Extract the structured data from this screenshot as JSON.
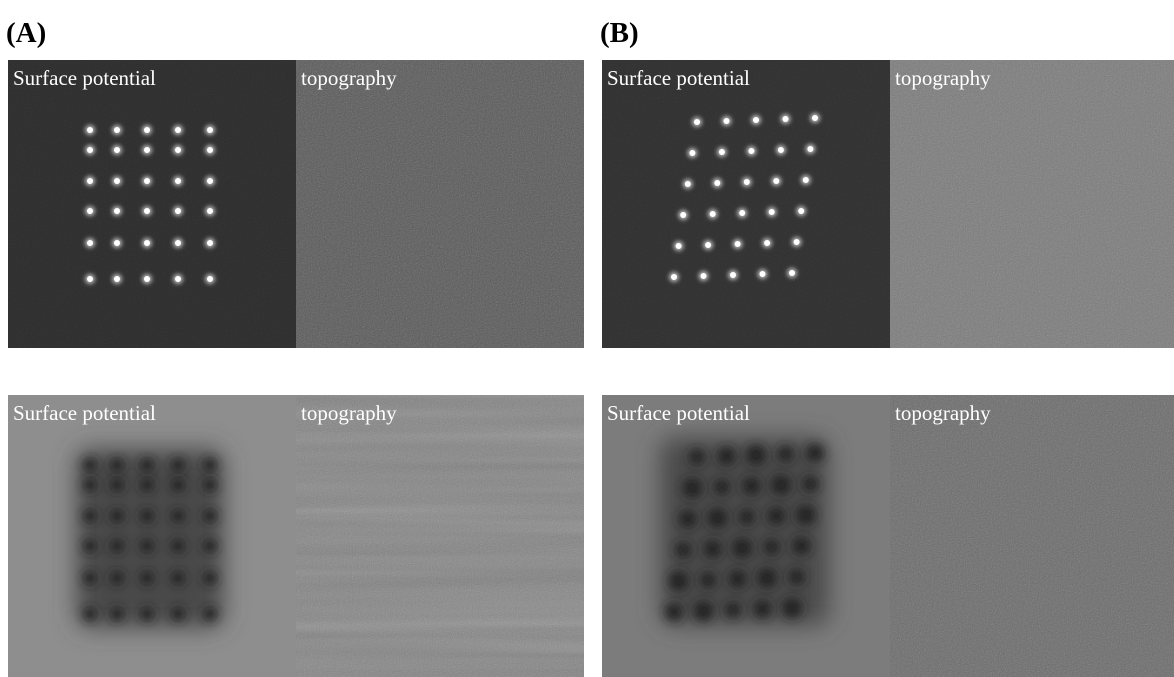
{
  "panels": [
    {
      "label": "(A)",
      "images": [
        {
          "caption": "Surface potential"
        },
        {
          "caption": "topography"
        },
        {
          "caption": "Surface potential"
        },
        {
          "caption": "topography"
        }
      ]
    },
    {
      "label": "(B)",
      "images": [
        {
          "caption": "Surface potential"
        },
        {
          "caption": "topography"
        },
        {
          "caption": "Surface potential"
        },
        {
          "caption": "topography"
        }
      ]
    }
  ]
}
